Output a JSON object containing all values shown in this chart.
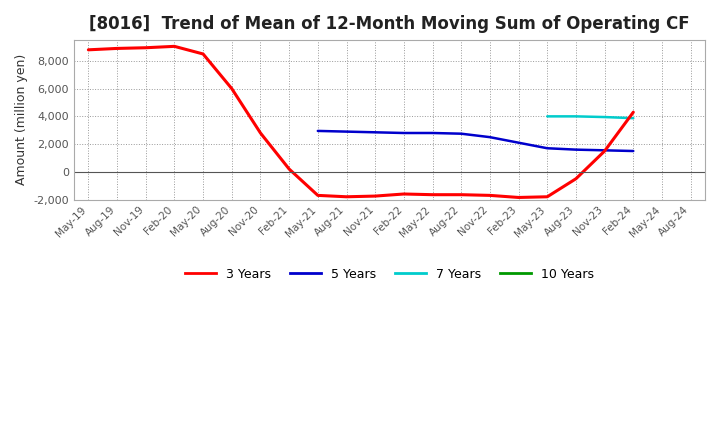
{
  "title": "[8016]  Trend of Mean of 12-Month Moving Sum of Operating CF",
  "ylabel": "Amount (million yen)",
  "ylim": [
    -2000,
    9500
  ],
  "yticks": [
    -2000,
    0,
    2000,
    4000,
    6000,
    8000
  ],
  "background_color": "#ffffff",
  "plot_bg_color": "#ffffff",
  "grid_color": "#999999",
  "x_labels": [
    "May-19",
    "Aug-19",
    "Nov-19",
    "Feb-20",
    "May-20",
    "Aug-20",
    "Nov-20",
    "Feb-21",
    "May-21",
    "Aug-21",
    "Nov-21",
    "Feb-22",
    "May-22",
    "Aug-22",
    "Nov-22",
    "Feb-23",
    "May-23",
    "Aug-23",
    "Nov-23",
    "Feb-24",
    "May-24",
    "Aug-24"
  ],
  "series": {
    "3 Years": {
      "color": "#ff0000",
      "data_x": [
        0,
        1,
        2,
        3,
        4,
        5,
        6,
        7,
        8,
        9,
        10,
        11,
        12,
        13,
        14,
        15,
        16,
        17,
        18,
        19
      ],
      "data_y": [
        8800,
        8900,
        8950,
        9050,
        8500,
        6000,
        2800,
        200,
        -1700,
        -1800,
        -1750,
        -1600,
        -1650,
        -1650,
        -1700,
        -1850,
        -1800,
        -500,
        1500,
        4300
      ]
    },
    "5 Years": {
      "color": "#0000cc",
      "data_x": [
        8,
        9,
        10,
        11,
        12,
        13,
        14,
        15,
        16,
        17,
        18,
        19
      ],
      "data_y": [
        2950,
        2900,
        2850,
        2800,
        2800,
        2750,
        2500,
        2100,
        1700,
        1600,
        1550,
        1500
      ]
    },
    "7 Years": {
      "color": "#00cccc",
      "data_x": [
        16,
        17,
        18,
        19
      ],
      "data_y": [
        4000,
        4000,
        3950,
        3870
      ]
    },
    "10 Years": {
      "color": "#009900",
      "data_x": [
        19
      ],
      "data_y": [
        3830
      ]
    }
  }
}
